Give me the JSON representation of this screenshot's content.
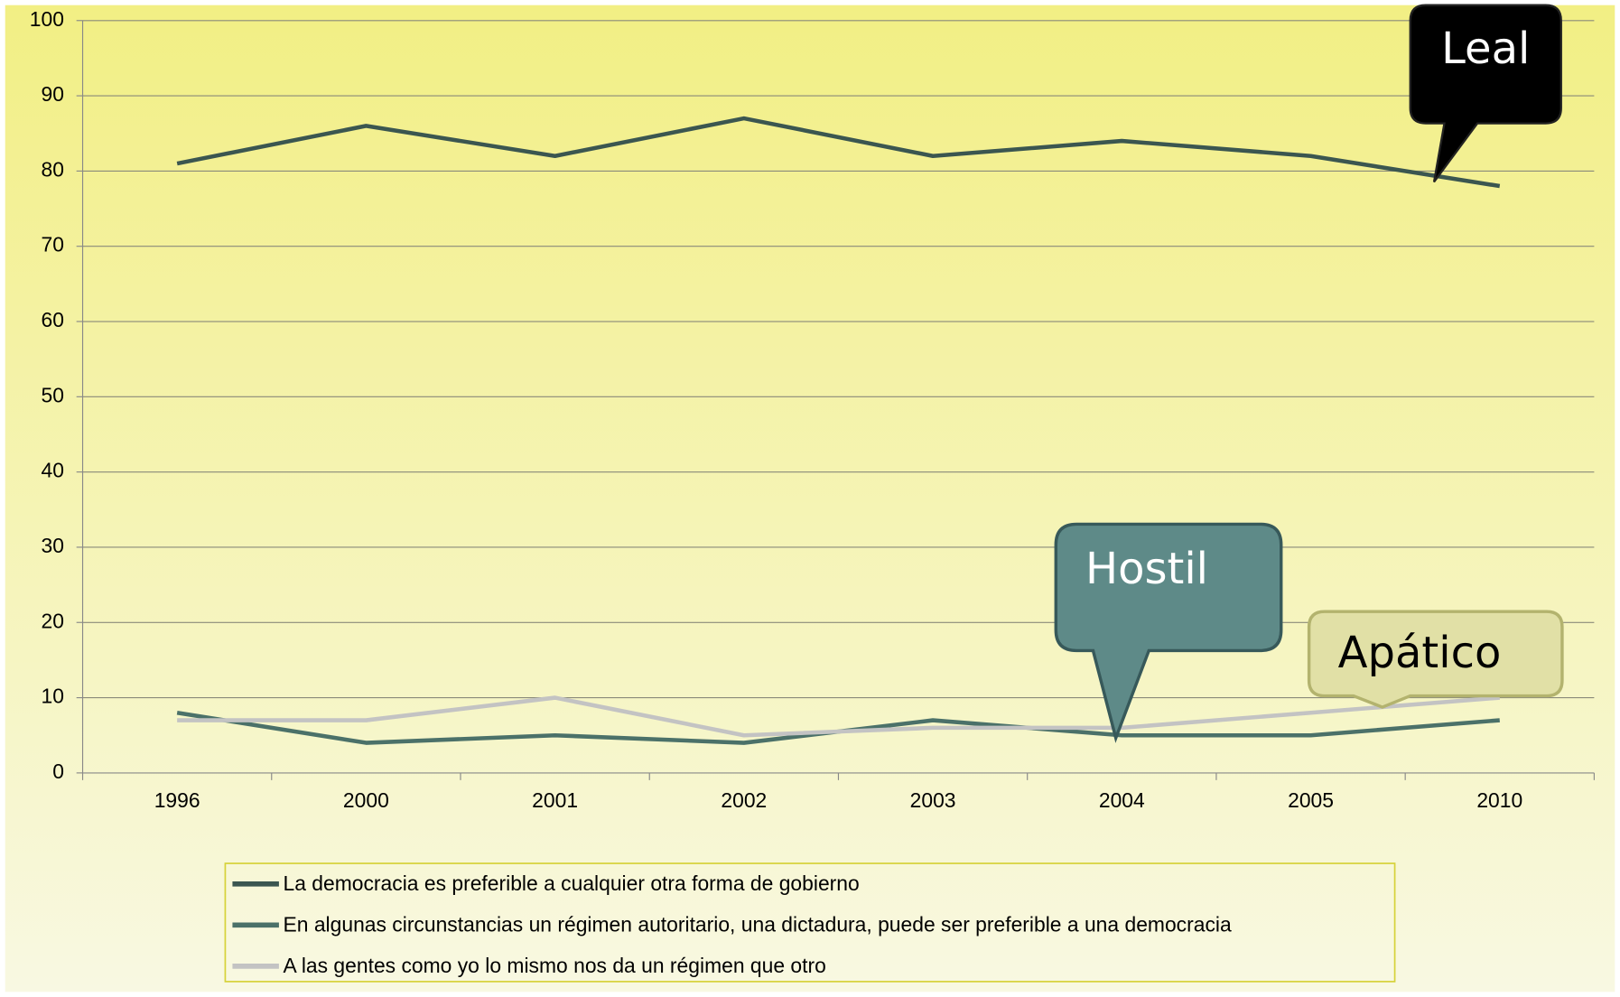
{
  "chart_data": {
    "type": "line",
    "categories": [
      "1996",
      "2000",
      "2001",
      "2002",
      "2003",
      "2004",
      "2005",
      "2010"
    ],
    "series": [
      {
        "name": "La democracia es preferible a cualquier otra forma de gobierno",
        "color": "#3b5650",
        "values": [
          81,
          86,
          82,
          87,
          82,
          84,
          82,
          78
        ]
      },
      {
        "name": "En algunas circunstancias un régimen autoritario, una dictadura, puede ser  preferible a una democracia",
        "color": "#4b7169",
        "values": [
          8,
          4,
          5,
          4,
          7,
          5,
          5,
          7
        ]
      },
      {
        "name": "A las gentes como yo lo mismo nos da un régimen que otro",
        "color": "#c3c3c3",
        "values": [
          7,
          7,
          10,
          5,
          6,
          6,
          8,
          10
        ]
      }
    ],
    "ylim": [
      0,
      100
    ],
    "yticks": [
      0,
      10,
      20,
      30,
      40,
      50,
      60,
      70,
      80,
      90,
      100
    ],
    "grid": true,
    "legend": "bottom",
    "annotations": [
      "Leal",
      "Hostil",
      "Apático"
    ]
  }
}
